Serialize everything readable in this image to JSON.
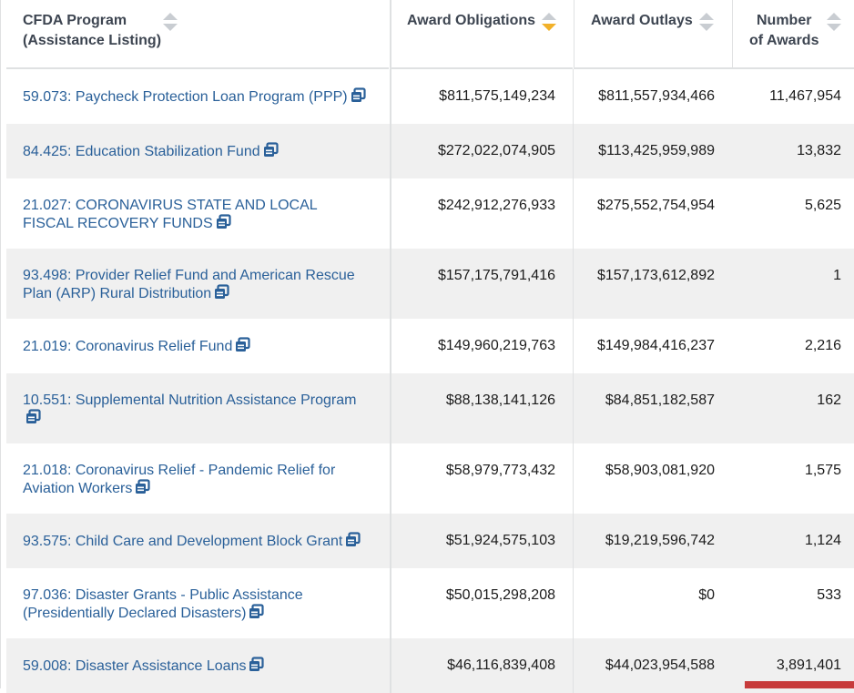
{
  "table": {
    "columns": [
      {
        "label_line1": "CFDA Program",
        "label_line2": "(Assistance Listing)"
      },
      {
        "label_line1": "Award Obligations",
        "label_line2": ""
      },
      {
        "label_line1": "Award Outlays",
        "label_line2": ""
      },
      {
        "label_line1": "Number",
        "label_line2": "of Awards"
      }
    ],
    "sorted_column": "Award Obligations",
    "sort_direction": "descending",
    "rows": [
      {
        "program": "59.073: Paycheck Protection Loan Program (PPP)",
        "obligations": "$811,575,149,234",
        "outlays": "$811,557,934,466",
        "awards": "11,467,954"
      },
      {
        "program": "84.425: Education Stabilization Fund",
        "obligations": "$272,022,074,905",
        "outlays": "$113,425,959,989",
        "awards": "13,832"
      },
      {
        "program": "21.027: CORONAVIRUS STATE AND LOCAL FISCAL RECOVERY FUNDS",
        "obligations": "$242,912,276,933",
        "outlays": "$275,552,754,954",
        "awards": "5,625"
      },
      {
        "program": "93.498: Provider Relief Fund and American Rescue Plan (ARP) Rural Distribution",
        "obligations": "$157,175,791,416",
        "outlays": "$157,173,612,892",
        "awards": "1"
      },
      {
        "program": "21.019: Coronavirus Relief Fund",
        "obligations": "$149,960,219,763",
        "outlays": "$149,984,416,237",
        "awards": "2,216"
      },
      {
        "program": "10.551: Supplemental Nutrition Assistance Program",
        "obligations": "$88,138,141,126",
        "outlays": "$84,851,182,587",
        "awards": "162"
      },
      {
        "program": "21.018: Coronavirus Relief - Pandemic Relief for Aviation Workers",
        "obligations": "$58,979,773,432",
        "outlays": "$58,903,081,920",
        "awards": "1,575"
      },
      {
        "program": "93.575: Child Care and Development Block Grant",
        "obligations": "$51,924,575,103",
        "outlays": "$19,219,596,742",
        "awards": "1,124"
      },
      {
        "program": "97.036: Disaster Grants - Public Assistance (Presidentially Declared Disasters)",
        "obligations": "$50,015,298,208",
        "outlays": "$0",
        "awards": "533"
      },
      {
        "program": "59.008: Disaster Assistance Loans",
        "obligations": "$46,116,839,408",
        "outlays": "$44,023,954,588",
        "awards": "3,891,401"
      }
    ]
  },
  "colors": {
    "link": "#2a6099",
    "sort_active": "#f2b12a",
    "sort_inactive": "#c9cdd2",
    "alt_row": "#f0f0f0",
    "corner_bar": "#c73b3b"
  },
  "icons": {
    "program_link_icon": "copy-icon"
  }
}
